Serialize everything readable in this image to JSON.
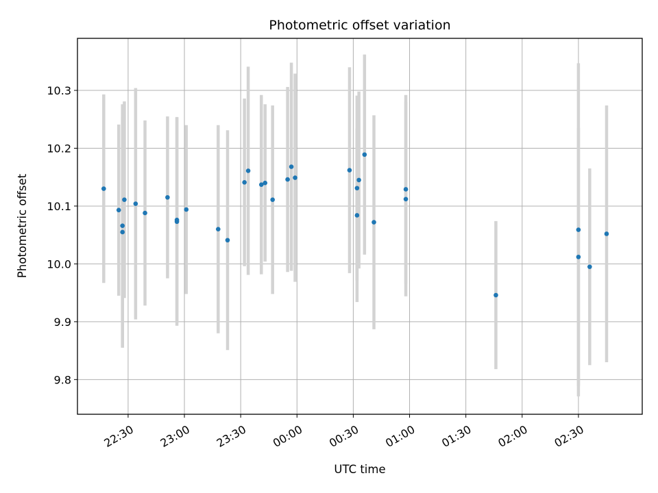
{
  "chart_data": {
    "type": "scatter",
    "title": "Photometric offset variation",
    "xlabel": "UTC time",
    "ylabel": "Photometric offset",
    "x_axis_type": "time",
    "x_ticks": [
      "22:30",
      "23:00",
      "23:30",
      "00:00",
      "00:30",
      "01:00",
      "01:30",
      "02:00",
      "02:30"
    ],
    "x_tick_dates": [
      "2024-01-01T22:30",
      "2024-01-01T23:00",
      "2024-01-01T23:30",
      "2024-01-02T00:00",
      "2024-01-02T00:30",
      "2024-01-02T01:00",
      "2024-01-02T01:30",
      "2024-01-02T02:00",
      "2024-01-02T02:30"
    ],
    "xlim": [
      "2024-01-01T22:03",
      "2024-01-02T03:04"
    ],
    "y_ticks": [
      9.8,
      9.9,
      10.0,
      10.1,
      10.2,
      10.3
    ],
    "y_tick_labels": [
      "9.8",
      "9.9",
      "10.0",
      "10.1",
      "10.2",
      "10.3"
    ],
    "ylim": [
      9.74,
      10.39
    ],
    "grid": true,
    "marker_color": "#1f77b4",
    "errorbar_color": "#d3d3d3",
    "points": [
      {
        "t": "2024-01-01T22:17",
        "y": 10.13,
        "err": 0.163
      },
      {
        "t": "2024-01-01T22:25",
        "y": 10.093,
        "err": 0.148
      },
      {
        "t": "2024-01-01T22:27",
        "y": 10.066,
        "err": 0.21
      },
      {
        "t": "2024-01-01T22:27",
        "y": 10.055,
        "err": 0.2
      },
      {
        "t": "2024-01-01T22:28",
        "y": 10.111,
        "err": 0.17
      },
      {
        "t": "2024-01-01T22:34",
        "y": 10.104,
        "err": 0.2
      },
      {
        "t": "2024-01-01T22:39",
        "y": 10.088,
        "err": 0.16
      },
      {
        "t": "2024-01-01T22:51",
        "y": 10.115,
        "err": 0.14
      },
      {
        "t": "2024-01-01T22:56",
        "y": 10.073,
        "err": 0.18
      },
      {
        "t": "2024-01-01T22:56",
        "y": 10.076,
        "err": 0.178
      },
      {
        "t": "2024-01-01T23:01",
        "y": 10.094,
        "err": 0.146
      },
      {
        "t": "2024-01-01T23:18",
        "y": 10.06,
        "err": 0.18
      },
      {
        "t": "2024-01-01T23:23",
        "y": 10.041,
        "err": 0.19
      },
      {
        "t": "2024-01-01T23:32",
        "y": 10.141,
        "err": 0.145
      },
      {
        "t": "2024-01-01T23:34",
        "y": 10.161,
        "err": 0.18
      },
      {
        "t": "2024-01-01T23:41",
        "y": 10.137,
        "err": 0.155
      },
      {
        "t": "2024-01-01T23:43",
        "y": 10.14,
        "err": 0.136
      },
      {
        "t": "2024-01-01T23:47",
        "y": 10.111,
        "err": 0.163
      },
      {
        "t": "2024-01-01T23:55",
        "y": 10.146,
        "err": 0.16
      },
      {
        "t": "2024-01-01T23:57",
        "y": 10.168,
        "err": 0.18
      },
      {
        "t": "2024-01-01T23:59",
        "y": 10.149,
        "err": 0.18
      },
      {
        "t": "2024-01-02T00:28",
        "y": 10.162,
        "err": 0.178
      },
      {
        "t": "2024-01-02T00:32",
        "y": 10.084,
        "err": 0.15
      },
      {
        "t": "2024-01-02T00:32",
        "y": 10.131,
        "err": 0.16
      },
      {
        "t": "2024-01-02T00:33",
        "y": 10.145,
        "err": 0.153
      },
      {
        "t": "2024-01-02T00:36",
        "y": 10.189,
        "err": 0.173
      },
      {
        "t": "2024-01-02T00:41",
        "y": 10.072,
        "err": 0.185
      },
      {
        "t": "2024-01-02T00:58",
        "y": 10.112,
        "err": 0.168
      },
      {
        "t": "2024-01-02T00:58",
        "y": 10.129,
        "err": 0.163
      },
      {
        "t": "2024-01-02T01:46",
        "y": 9.946,
        "err": 0.128
      },
      {
        "t": "2024-01-02T02:30",
        "y": 10.012,
        "err": 0.223
      },
      {
        "t": "2024-01-02T02:30",
        "y": 10.059,
        "err": 0.288
      },
      {
        "t": "2024-01-02T02:36",
        "y": 9.995,
        "err": 0.17
      },
      {
        "t": "2024-01-02T02:45",
        "y": 10.052,
        "err": 0.222
      }
    ]
  }
}
